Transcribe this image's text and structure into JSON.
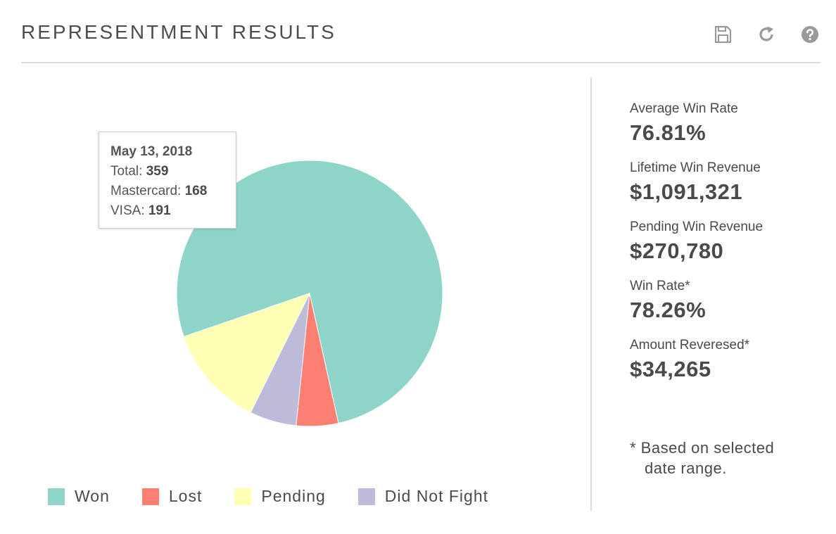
{
  "header": {
    "title": "REPRESENTMENT RESULTS",
    "tools": [
      {
        "icon": "save-icon"
      },
      {
        "icon": "refresh-icon"
      },
      {
        "icon": "help-icon"
      }
    ]
  },
  "tooltip": {
    "date": "May 13, 2018",
    "total_label": "Total:",
    "total_value": "359",
    "mastercard_label": "Mastercard:",
    "mastercard_value": "168",
    "visa_label": "VISA:",
    "visa_value": "191"
  },
  "chart_data": {
    "type": "pie",
    "slices": [
      {
        "name": "Won",
        "value": 76.8,
        "color": "#8fd4c8"
      },
      {
        "name": "Lost",
        "value": 5.1,
        "color": "#fb8072"
      },
      {
        "name": "Did Not Fight",
        "value": 5.7,
        "color": "#bebada"
      },
      {
        "name": "Pending",
        "value": 12.4,
        "color": "#ffffb3"
      }
    ],
    "legend": [
      "Won",
      "Lost",
      "Pending",
      "Did Not Fight"
    ],
    "legend_position": "bottom"
  },
  "colors": {
    "won": "#8fd4c8",
    "lost": "#fb8072",
    "pending": "#ffffb3",
    "did_not_fight": "#bebada"
  },
  "stats": [
    {
      "label": "Average Win Rate",
      "value": "76.81%"
    },
    {
      "label": "Lifetime Win Revenue",
      "value": "$1,091,321"
    },
    {
      "label": "Pending Win Revenue",
      "value": "$270,780"
    },
    {
      "label": "Win Rate*",
      "value": "78.26%"
    },
    {
      "label": "Amount Reveresed*",
      "value": "$34,265"
    }
  ],
  "footnote": {
    "line1": "* Based on selected",
    "line2": "date range."
  }
}
